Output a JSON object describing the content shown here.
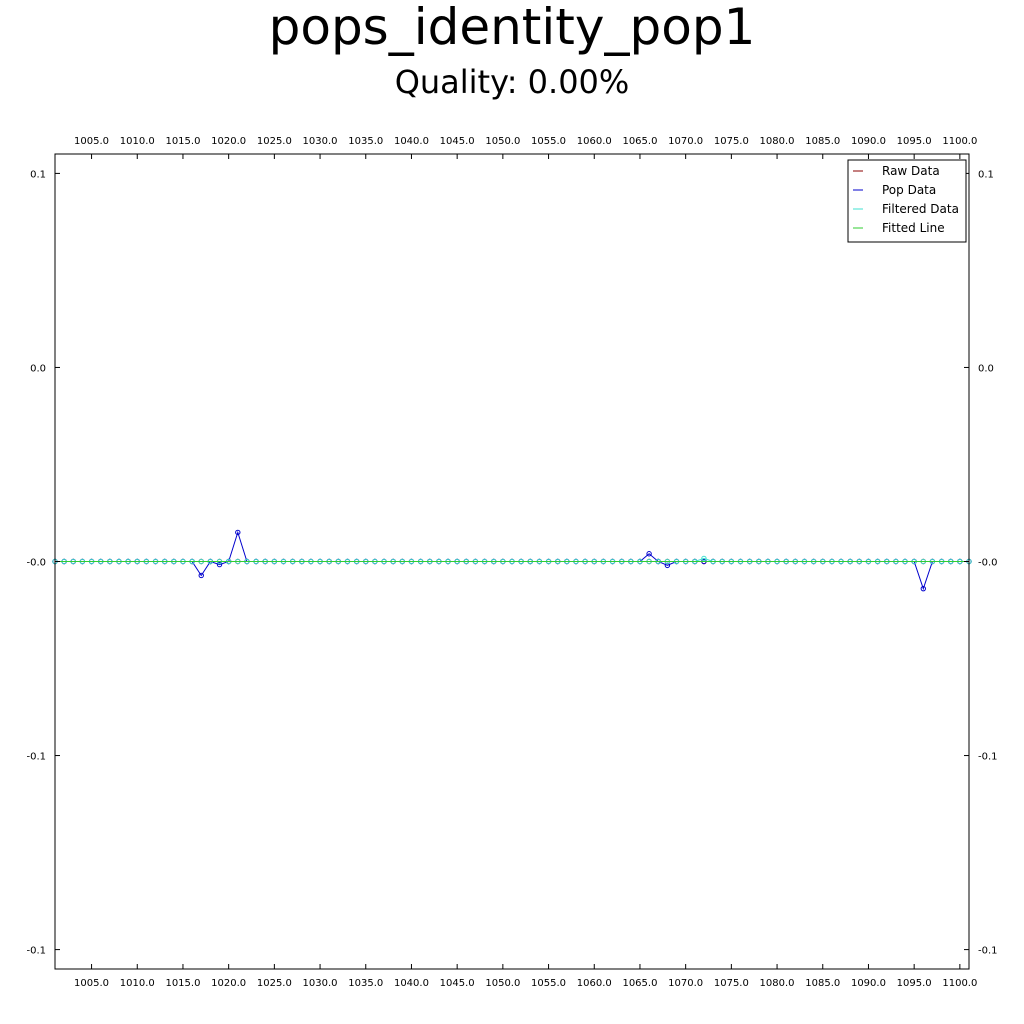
{
  "chart_data": {
    "type": "line",
    "title": "pops_identity_pop1",
    "subtitle": "Quality: 0.00%",
    "xlabel": "",
    "ylabel": "",
    "xlim": [
      1001,
      1101
    ],
    "ylim": [
      -0.105,
      0.105
    ],
    "x_ticks": [
      1005,
      1010,
      1015,
      1020,
      1025,
      1030,
      1035,
      1040,
      1045,
      1050,
      1055,
      1060,
      1065,
      1070,
      1075,
      1080,
      1085,
      1090,
      1095,
      1100
    ],
    "x_tick_labels": [
      "1005.0",
      "1010.0",
      "1015.0",
      "1020.0",
      "1025.0",
      "1030.0",
      "1035.0",
      "1040.0",
      "1045.0",
      "1050.0",
      "1055.0",
      "1060.0",
      "1065.0",
      "1070.0",
      "1075.0",
      "1080.0",
      "1085.0",
      "1090.0",
      "1095.0",
      "1100.0"
    ],
    "y_ticks": [
      0.1,
      0.05,
      0.0,
      -0.05,
      -0.1
    ],
    "y_tick_labels": [
      "0.1",
      "0.0",
      "-0.0",
      "-0.1",
      "-0.1"
    ],
    "grid": false,
    "legend_position": "top-right",
    "x_start": 1001,
    "x_end": 1101,
    "series": [
      {
        "name": "Raw Data",
        "color": "#8b0000",
        "marker": "circle",
        "default_value": 0.0,
        "overrides": [
          [
            1072,
            0.0
          ]
        ]
      },
      {
        "name": "Pop Data",
        "color": "#0000cd",
        "marker": "circle",
        "default_value": 0.0,
        "overrides": [
          [
            1017,
            -0.0036
          ],
          [
            1019,
            -0.0008
          ],
          [
            1021,
            0.0075
          ],
          [
            1066,
            0.002
          ],
          [
            1068,
            -0.001
          ],
          [
            1096,
            -0.007
          ]
        ]
      },
      {
        "name": "Filtered Data",
        "color": "#40e0d0",
        "marker": "circle",
        "default_value": 0.0,
        "overrides": [
          [
            1072,
            0.0008
          ]
        ]
      },
      {
        "name": "Fitted Line",
        "color": "#32cd32",
        "marker": "none",
        "default_value": 0.0,
        "overrides": []
      }
    ]
  }
}
